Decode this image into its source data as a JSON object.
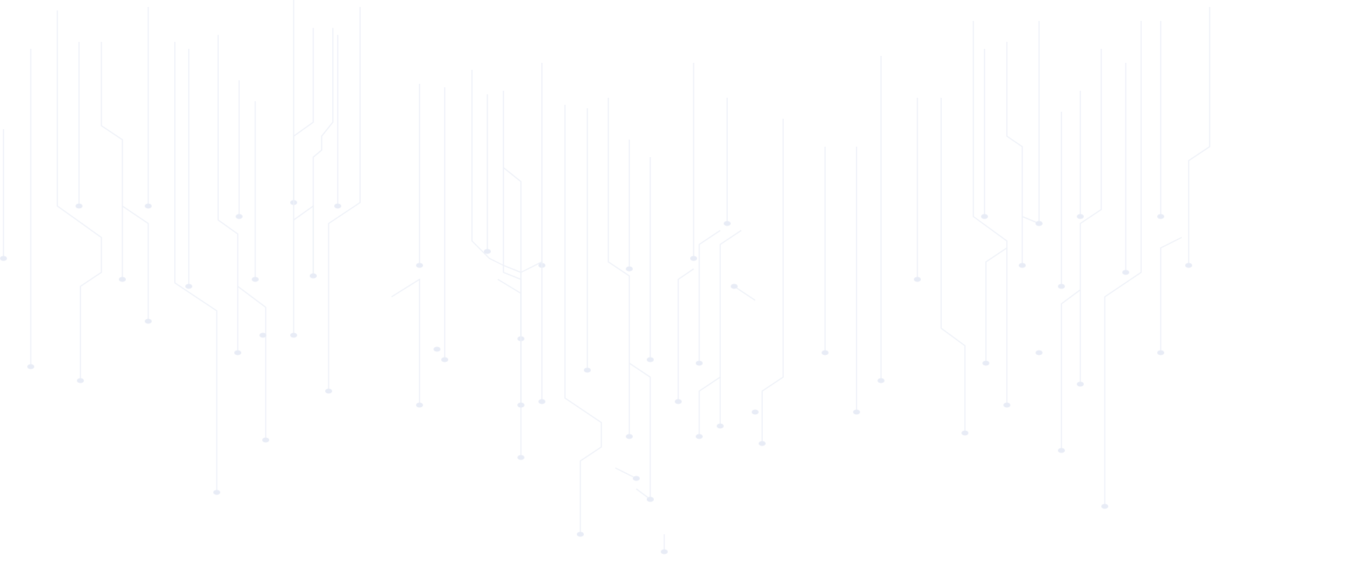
{
  "background": {
    "pattern": "circuit-lines",
    "line_color": "#eef1f8",
    "dot_color": "#e8ecf6",
    "page_color": "#ffffff"
  }
}
